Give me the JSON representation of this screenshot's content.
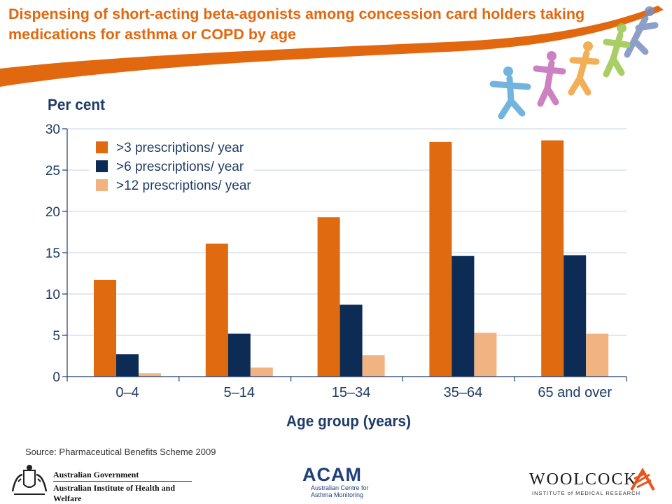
{
  "slide": {
    "title": "Dispensing of short-acting beta-agonists among concession card holders taking medications for asthma or COPD by age",
    "source": "Source: Pharmaceutical Benefits Scheme 2009"
  },
  "chart_data": {
    "type": "bar",
    "ylabel": "Per cent",
    "xlabel": "Age group (years)",
    "ylim": [
      0,
      30
    ],
    "yticks": [
      0,
      5,
      10,
      15,
      20,
      25,
      30
    ],
    "categories": [
      "0–4",
      "5–14",
      "15–34",
      "35–64",
      "65 and over"
    ],
    "series": [
      {
        "name": ">3 prescriptions/ year",
        "color": "#e06a10",
        "values": [
          11.7,
          16.1,
          19.3,
          28.4,
          28.6
        ]
      },
      {
        "name": ">6 prescriptions/ year",
        "color": "#0d2c55",
        "values": [
          2.7,
          5.2,
          8.7,
          14.6,
          14.7
        ]
      },
      {
        "name": ">12 prescriptions/ year",
        "color": "#f2b383",
        "values": [
          0.4,
          1.1,
          2.6,
          5.3,
          5.2
        ]
      }
    ],
    "legend_position": "top-left",
    "grid": true
  },
  "logos": {
    "gov_line1": "Australian Government",
    "gov_line2": "Australian Institute of Health and Welfare",
    "acam": "ACAM",
    "acam_sub": "Australian Centre for Asthma Monitoring",
    "woolcock": "WOOLCOCK",
    "woolcock_sub": "INSTITUTE of MEDICAL RESEARCH"
  },
  "colors": {
    "title": "#e2680f",
    "axis_text": "#1f3b66",
    "grid": "#c9d3e0"
  },
  "icons": [
    "people-figures-icon",
    "coat-of-arms-icon",
    "woolcock-logo-icon"
  ]
}
